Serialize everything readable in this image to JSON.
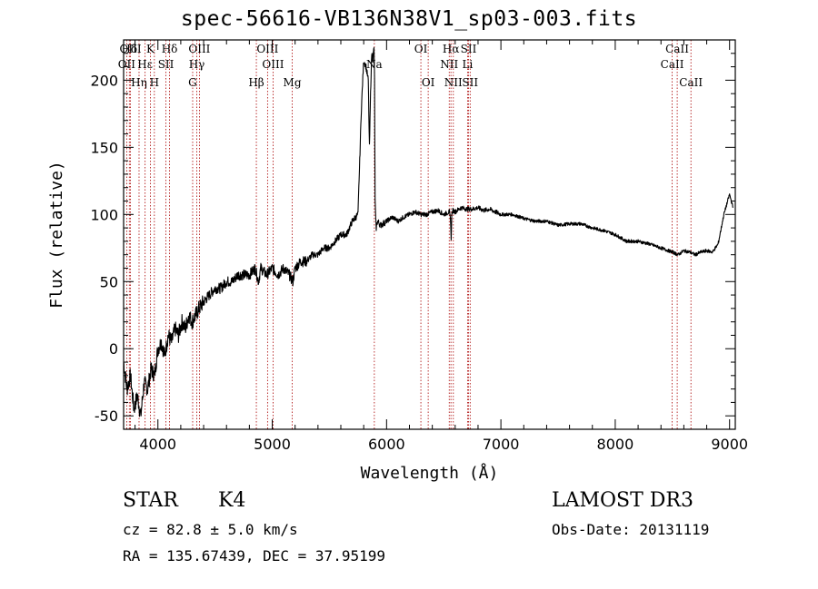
{
  "title": "spec-56616-VB136N38V1_sp03-003.fits",
  "info": {
    "obj_class": "STAR",
    "subclass": "K4",
    "survey": "LAMOST DR3",
    "cz": "cz = 82.8 ± 5.0 km/s",
    "obs_date": "Obs-Date: 20131119",
    "radec": "RA = 135.67439, DEC =  37.95199"
  },
  "colors": {
    "line": "#000000",
    "marker": "#aa0000"
  },
  "chart_data": {
    "type": "line",
    "title": "spec-56616-VB136N38V1_sp03-003.fits",
    "xlabel": "Wavelength (Å)",
    "ylabel": "Flux (relative)",
    "xlim": [
      3700,
      9050
    ],
    "ylim": [
      -60,
      230
    ],
    "xticks": [
      4000,
      5000,
      6000,
      7000,
      8000,
      9000
    ],
    "yticks": [
      -50,
      0,
      50,
      100,
      150,
      200
    ],
    "xtick_labels": [
      "4000",
      "5000",
      "6000",
      "7000",
      "8000",
      "9000"
    ],
    "ytick_labels": [
      "-50",
      "0",
      "50",
      "100",
      "150",
      "200"
    ],
    "x_minor_step": 200,
    "y_minor_step": 10,
    "series": [
      {
        "name": "flux",
        "x": [
          3700,
          3730,
          3760,
          3790,
          3820,
          3850,
          3880,
          3910,
          3940,
          3970,
          4000,
          4030,
          4060,
          4090,
          4120,
          4150,
          4180,
          4210,
          4240,
          4270,
          4300,
          4330,
          4360,
          4400,
          4450,
          4500,
          4550,
          4600,
          4650,
          4700,
          4750,
          4800,
          4850,
          4880,
          4900,
          4950,
          5000,
          5050,
          5100,
          5150,
          5180,
          5200,
          5250,
          5300,
          5350,
          5400,
          5450,
          5500,
          5550,
          5600,
          5650,
          5700,
          5750,
          5780,
          5800,
          5820,
          5840,
          5850,
          5860,
          5870,
          5880,
          5890,
          5895,
          5900,
          5905,
          5910,
          5920,
          5950,
          6000,
          6050,
          6100,
          6150,
          6200,
          6250,
          6300,
          6350,
          6400,
          6450,
          6500,
          6550,
          6560,
          6565,
          6570,
          6580,
          6600,
          6650,
          6700,
          6750,
          6800,
          6850,
          6900,
          6950,
          7000,
          7100,
          7200,
          7300,
          7400,
          7500,
          7600,
          7700,
          7800,
          7900,
          8000,
          8100,
          8200,
          8300,
          8400,
          8500,
          8550,
          8600,
          8650,
          8700,
          8750,
          8800,
          8850,
          8900,
          8950,
          9000,
          9030
        ],
        "y": [
          -10,
          -30,
          -20,
          -45,
          -35,
          -50,
          -25,
          -30,
          -15,
          -20,
          0,
          5,
          -5,
          10,
          5,
          15,
          10,
          20,
          15,
          25,
          20,
          25,
          30,
          35,
          40,
          45,
          45,
          50,
          50,
          55,
          55,
          55,
          60,
          50,
          60,
          55,
          60,
          55,
          60,
          55,
          50,
          60,
          65,
          65,
          70,
          70,
          75,
          75,
          80,
          85,
          85,
          95,
          100,
          180,
          215,
          210,
          200,
          150,
          190,
          220,
          215,
          225,
          200,
          110,
          95,
          90,
          95,
          92,
          95,
          98,
          95,
          98,
          100,
          102,
          100,
          100,
          102,
          103,
          100,
          102,
          95,
          80,
          100,
          103,
          102,
          105,
          104,
          104,
          105,
          103,
          104,
          102,
          100,
          100,
          97,
          95,
          95,
          92,
          93,
          93,
          90,
          88,
          85,
          80,
          80,
          78,
          75,
          72,
          70,
          73,
          72,
          70,
          72,
          73,
          72,
          78,
          100,
          115,
          105
        ]
      }
    ],
    "lines": [
      {
        "label": "Hδ",
        "wave": 3750
      },
      {
        "label": "OII",
        "wave": 3727
      },
      {
        "label": "OIII",
        "wave": 3760
      },
      {
        "label": "K",
        "wave": 3934
      },
      {
        "label": "Hε",
        "wave": 3888
      },
      {
        "label": "Hη",
        "wave": 3835
      },
      {
        "label": "SII",
        "wave": 4070
      },
      {
        "label": "H",
        "wave": 3969
      },
      {
        "label": "Hδ",
        "wave": 4102
      },
      {
        "label": "OIII",
        "wave": 4363
      },
      {
        "label": "Hγ",
        "wave": 4340
      },
      {
        "label": "G",
        "wave": 4304
      },
      {
        "label": "Hβ",
        "wave": 4861
      },
      {
        "label": "OIII",
        "wave": 4959
      },
      {
        "label": "OIII",
        "wave": 5007
      },
      {
        "label": "Mg",
        "wave": 5175
      },
      {
        "label": "Na",
        "wave": 5893
      },
      {
        "label": "OI",
        "wave": 6300
      },
      {
        "label": "OI",
        "wave": 6364
      },
      {
        "label": "Hα",
        "wave": 6563
      },
      {
        "label": "NII",
        "wave": 6548
      },
      {
        "label": "NII",
        "wave": 6584
      },
      {
        "label": "SII",
        "wave": 6717
      },
      {
        "label": "Li",
        "wave": 6708
      },
      {
        "label": "SII",
        "wave": 6731
      },
      {
        "label": "CaII",
        "wave": 8542
      },
      {
        "label": "CaII",
        "wave": 8498
      },
      {
        "label": "CaII",
        "wave": 8662
      }
    ]
  }
}
